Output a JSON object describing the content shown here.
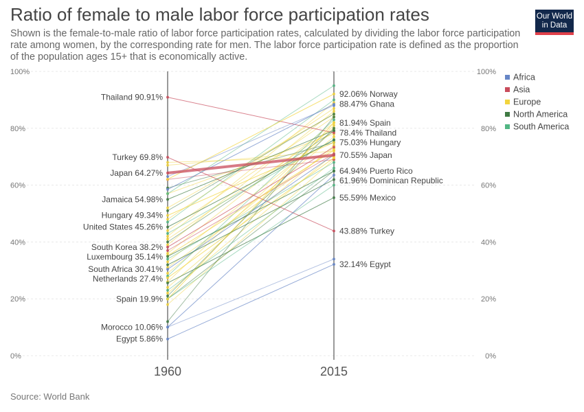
{
  "header": {
    "title": "Ratio of female to male labor force participation rates",
    "subtitle": "Shown is the female-to-male ratio of labor force participation rates, calculated by dividing the labor force participation rate among women, by the corresponding rate for men. The labor force participation rate is defined as the proportion of the population ages 15+ that is economically active.",
    "logo_line1": "Our World",
    "logo_line2": "in Data"
  },
  "footer": {
    "source": "Source: World Bank"
  },
  "chart_data": {
    "type": "slope",
    "x": [
      "1960",
      "2015"
    ],
    "ylim": [
      0,
      100
    ],
    "yticks": [
      "0%",
      "20%",
      "40%",
      "60%",
      "80%",
      "100%"
    ],
    "legend_position": "right",
    "legend": [
      {
        "name": "Africa",
        "color": "#6786c6"
      },
      {
        "name": "Asia",
        "color": "#c94c5c"
      },
      {
        "name": "Europe",
        "color": "#f2d43d"
      },
      {
        "name": "North America",
        "color": "#3f7a44"
      },
      {
        "name": "South America",
        "color": "#52b684"
      }
    ],
    "labeled_series": [
      {
        "region": "Asia",
        "start": 90.91,
        "end": 78.4,
        "start_label": "Thailand 90.91%",
        "end_label": "78.4% Thailand"
      },
      {
        "region": "Asia",
        "start": 69.8,
        "end": 43.88,
        "start_label": "Turkey 69.8%",
        "end_label": "43.88% Turkey"
      },
      {
        "region": "Asia",
        "start": 64.27,
        "end": 70.55,
        "start_label": "Japan 64.27%",
        "end_label": "70.55% Japan",
        "highlight": true
      },
      {
        "region": "North America",
        "start": 54.98,
        "end": null,
        "start_label": "Jamaica 54.98%",
        "end_label": ""
      },
      {
        "region": "Europe",
        "start": 49.34,
        "end": 75.03,
        "start_label": "Hungary 49.34%",
        "end_label": "75.03% Hungary"
      },
      {
        "region": "North America",
        "start": 45.26,
        "end": null,
        "start_label": "United States 45.26%",
        "end_label": ""
      },
      {
        "region": "Asia",
        "start": 38.2,
        "end": null,
        "start_label": "South Korea 38.2%",
        "end_label": ""
      },
      {
        "region": "Europe",
        "start": 35.14,
        "end": null,
        "start_label": "Luxembourg 35.14%",
        "end_label": ""
      },
      {
        "region": "Africa",
        "start": 30.41,
        "end": null,
        "start_label": "South Africa 30.41%",
        "end_label": ""
      },
      {
        "region": "Europe",
        "start": 27.4,
        "end": null,
        "start_label": "Netherlands 27.4%",
        "end_label": ""
      },
      {
        "region": "Europe",
        "start": 19.9,
        "end": 81.94,
        "start_label": "Spain 19.9%",
        "end_label": "81.94% Spain"
      },
      {
        "region": "Africa",
        "start": 10.06,
        "end": null,
        "start_label": "Morocco 10.06%",
        "end_label": ""
      },
      {
        "region": "Africa",
        "start": 5.86,
        "end": 32.14,
        "start_label": "Egypt 5.86%",
        "end_label": "32.14% Egypt"
      },
      {
        "region": "Europe",
        "start": null,
        "end": 92.06,
        "start_label": "",
        "end_label": "92.06% Norway"
      },
      {
        "region": "Africa",
        "start": null,
        "end": 88.47,
        "start_label": "",
        "end_label": "88.47% Ghana"
      },
      {
        "region": "North America",
        "start": null,
        "end": 64.94,
        "start_label": "",
        "end_label": "64.94% Puerto Rico"
      },
      {
        "region": "North America",
        "start": null,
        "end": 61.96,
        "start_label": "",
        "end_label": "61.96% Dominican Republic"
      },
      {
        "region": "North America",
        "start": null,
        "end": 55.59,
        "start_label": "",
        "end_label": "55.59% Mexico"
      }
    ],
    "unlabeled_series": [
      {
        "region": "Europe",
        "start": 52,
        "end": 85
      },
      {
        "region": "Europe",
        "start": 48,
        "end": 87
      },
      {
        "region": "Europe",
        "start": 44,
        "end": 84
      },
      {
        "region": "Europe",
        "start": 41,
        "end": 80
      },
      {
        "region": "Europe",
        "start": 39,
        "end": 86
      },
      {
        "region": "Europe",
        "start": 36,
        "end": 82
      },
      {
        "region": "Europe",
        "start": 33,
        "end": 79
      },
      {
        "region": "Europe",
        "start": 31,
        "end": 73
      },
      {
        "region": "Europe",
        "start": 29,
        "end": 77
      },
      {
        "region": "Europe",
        "start": 26,
        "end": 81
      },
      {
        "region": "Europe",
        "start": 24,
        "end": 74
      },
      {
        "region": "Europe",
        "start": 22,
        "end": 71
      },
      {
        "region": "Europe",
        "start": 18,
        "end": 69
      },
      {
        "region": "Europe",
        "start": 68,
        "end": 70
      },
      {
        "region": "Europe",
        "start": 67,
        "end": 72
      },
      {
        "region": "Europe",
        "start": 57,
        "end": 78
      },
      {
        "region": "Europe",
        "start": 42,
        "end": 89
      },
      {
        "region": "North America",
        "start": 59,
        "end": 75
      },
      {
        "region": "North America",
        "start": 51,
        "end": 85
      },
      {
        "region": "North America",
        "start": 40,
        "end": 79
      },
      {
        "region": "North America",
        "start": 21,
        "end": 80
      },
      {
        "region": "North America",
        "start": 20,
        "end": 65
      },
      {
        "region": "North America",
        "start": 12,
        "end": 84
      },
      {
        "region": "South America",
        "start": 57,
        "end": 95
      },
      {
        "region": "South America",
        "start": 47,
        "end": 90
      },
      {
        "region": "South America",
        "start": 43,
        "end": 76
      },
      {
        "region": "South America",
        "start": 34,
        "end": 68
      },
      {
        "region": "South America",
        "start": 28,
        "end": 83
      },
      {
        "region": "South America",
        "start": 23,
        "end": 66
      },
      {
        "region": "South America",
        "start": 20,
        "end": 60
      },
      {
        "region": "Asia",
        "start": 62,
        "end": 69
      },
      {
        "region": "Asia",
        "start": 37,
        "end": 71
      },
      {
        "region": "Africa",
        "start": 63,
        "end": 88
      },
      {
        "region": "Africa",
        "start": 10.06,
        "end": 34
      }
    ]
  }
}
